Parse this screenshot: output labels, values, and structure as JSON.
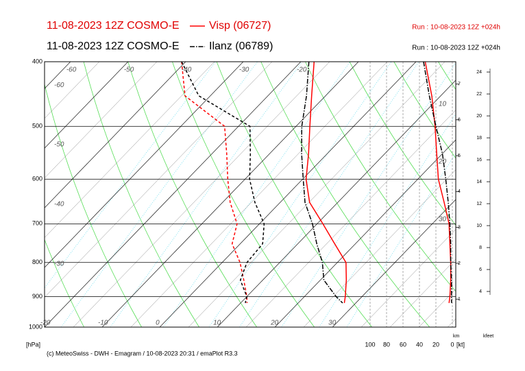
{
  "chart_data": {
    "type": "emagram",
    "footer": "(c) MeteoSwiss - DWH - Emagram / 10-08-2023  20:31 / emaPlot R3.3",
    "ylabel": "[hPa]",
    "log_y": true,
    "ylim": [
      1000,
      400
    ],
    "yticks": [
      400,
      500,
      600,
      700,
      800,
      900,
      1000
    ],
    "xlim": [
      -20,
      51.4
    ],
    "skew": 44.5,
    "xticks": [
      -60,
      -50,
      -40,
      -30,
      -20,
      -10,
      0,
      10,
      20,
      30
    ],
    "adiabat_labels": [
      10,
      20,
      30
    ],
    "pressure": [
      400,
      450,
      500,
      550,
      600,
      650,
      700,
      750,
      800,
      850,
      900,
      920
    ],
    "stations": [
      {
        "model": "11-08-2023 12Z COSMO-E",
        "name": "Visp (06727)",
        "run": "Run : 10-08-2023 12Z +024h",
        "color": "#ff0000",
        "style": "solid",
        "temperature": [
          -17.7,
          -12.4,
          -7.6,
          -3.2,
          0.6,
          5.1,
          11,
          16.4,
          21.5,
          24.5,
          27.1,
          28
        ],
        "dewpoint": [
          -40.7,
          -34.4,
          -22.4,
          -17.4,
          -13,
          -8.7,
          -3.9,
          -1.4,
          3.1,
          6.7,
          10,
          11.1
        ],
        "wind_speed": [
          33,
          25,
          21,
          19,
          17,
          10,
          4,
          3,
          2,
          2,
          3,
          4
        ]
      },
      {
        "model": "11-08-2023 12Z COSMO-E",
        "name": "Ilanz (06789)",
        "run": "Run : 10-08-2023 12Z +024h",
        "color": "#000000",
        "style": "dashdot",
        "temperature": [
          -18.6,
          -13.3,
          -9,
          -4.4,
          0.1,
          4.3,
          9.2,
          13.3,
          17.4,
          20.6,
          25.5,
          27.7
        ],
        "dewpoint": [
          -40.7,
          -32,
          -18,
          -13.3,
          -9.2,
          -4.4,
          0.8,
          3.9,
          4.3,
          6.1,
          10,
          10.8
        ],
        "wind_speed": [
          35,
          28,
          20,
          12,
          8,
          5,
          3,
          2,
          2,
          1,
          1,
          1
        ]
      }
    ],
    "wind_axis": {
      "label": "[kt]",
      "lim": [
        100,
        0
      ],
      "ticks": [
        100,
        80,
        60,
        40,
        20,
        0
      ]
    },
    "km_axis": {
      "label": "km",
      "lim": [
        0.22,
        7.62
      ],
      "ticks": [
        1,
        2,
        3,
        4,
        5,
        6,
        7
      ]
    },
    "kfeet_axis": {
      "label": "kfeet",
      "lim": [
        0.75,
        24.94
      ],
      "ticks": [
        4,
        6,
        8,
        10,
        12,
        14,
        16,
        18,
        20,
        22,
        24
      ]
    }
  }
}
